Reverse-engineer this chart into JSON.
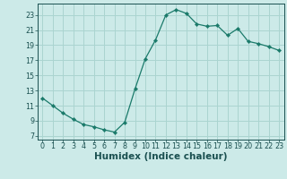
{
  "x": [
    0,
    1,
    2,
    3,
    4,
    5,
    6,
    7,
    8,
    9,
    10,
    11,
    12,
    13,
    14,
    15,
    16,
    17,
    18,
    19,
    20,
    21,
    22,
    23
  ],
  "y": [
    12.0,
    11.0,
    10.0,
    9.2,
    8.5,
    8.2,
    7.8,
    7.5,
    8.8,
    13.2,
    17.2,
    19.7,
    23.0,
    23.7,
    23.2,
    21.8,
    21.5,
    21.6,
    20.3,
    21.2,
    19.5,
    19.2,
    18.8,
    18.3
  ],
  "line_color": "#1a7a6a",
  "marker": "D",
  "marker_size": 2.2,
  "bg_color": "#cceae8",
  "grid_color": "#aad4d0",
  "xlabel": "Humidex (Indice chaleur)",
  "yticks": [
    7,
    9,
    11,
    13,
    15,
    17,
    19,
    21,
    23
  ],
  "xticks": [
    0,
    1,
    2,
    3,
    4,
    5,
    6,
    7,
    8,
    9,
    10,
    11,
    12,
    13,
    14,
    15,
    16,
    17,
    18,
    19,
    20,
    21,
    22,
    23
  ],
  "ylim": [
    6.5,
    24.5
  ],
  "xlim": [
    -0.5,
    23.5
  ],
  "tick_fontsize": 5.8,
  "xlabel_fontsize": 7.5,
  "label_color": "#1a5050"
}
